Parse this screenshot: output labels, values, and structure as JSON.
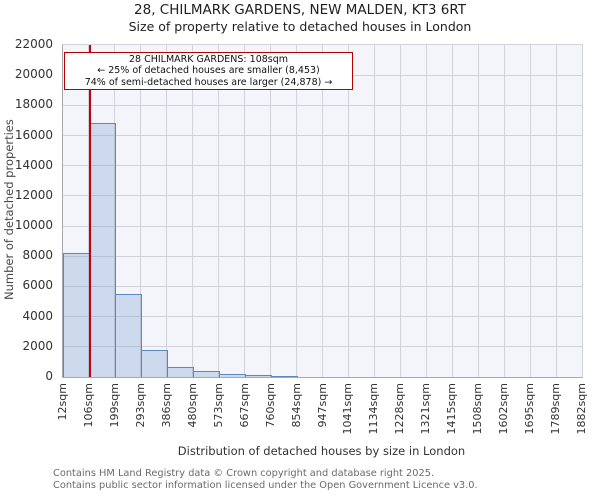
{
  "chart_data": {
    "type": "bar",
    "title": "28, CHILMARK GARDENS, NEW MALDEN, KT3 6RT",
    "subtitle": "Size of property relative to detached houses in London",
    "xlabel": "Distribution of detached houses by size in London",
    "ylabel": "Number of detached properties",
    "categories": [
      "12sqm",
      "106sqm",
      "199sqm",
      "293sqm",
      "386sqm",
      "480sqm",
      "573sqm",
      "667sqm",
      "760sqm",
      "854sqm",
      "947sqm",
      "1041sqm",
      "1134sqm",
      "1228sqm",
      "1321sqm",
      "1415sqm",
      "1508sqm",
      "1602sqm",
      "1695sqm",
      "1789sqm",
      "1882sqm"
    ],
    "values": [
      8200,
      16800,
      5480,
      1790,
      680,
      370,
      220,
      140,
      90,
      0,
      0,
      0,
      0,
      0,
      0,
      0,
      0,
      0,
      0,
      0
    ],
    "ylim": [
      0,
      22000
    ],
    "yticks": [
      0,
      2000,
      4000,
      6000,
      8000,
      10000,
      12000,
      14000,
      16000,
      18000,
      20000,
      22000
    ],
    "grid": "on",
    "legend": "none",
    "x_min_sqm": 12,
    "x_max_sqm": 1882,
    "marker": {
      "sqm": 108,
      "label": "108sqm"
    }
  },
  "annotation": {
    "line1": "28 CHILMARK GARDENS: 108sqm",
    "line2": "← 25% of detached houses are smaller (8,453)",
    "line3": "74% of semi-detached houses are larger (24,878) →"
  },
  "footer": {
    "line1": "Contains HM Land Registry data © Crown copyright and database right 2025.",
    "line2": "Contains public sector information licensed under the Open Government Licence v3.0."
  },
  "colors": {
    "plot_bg": "#f3f5fb",
    "grid": "#d2d3da",
    "bar_fill": "rgba(91,135,197,0.25)",
    "bar_edge": "#5b87c5",
    "marker_line": "#c4000a",
    "annotation_border": "#b40000"
  }
}
